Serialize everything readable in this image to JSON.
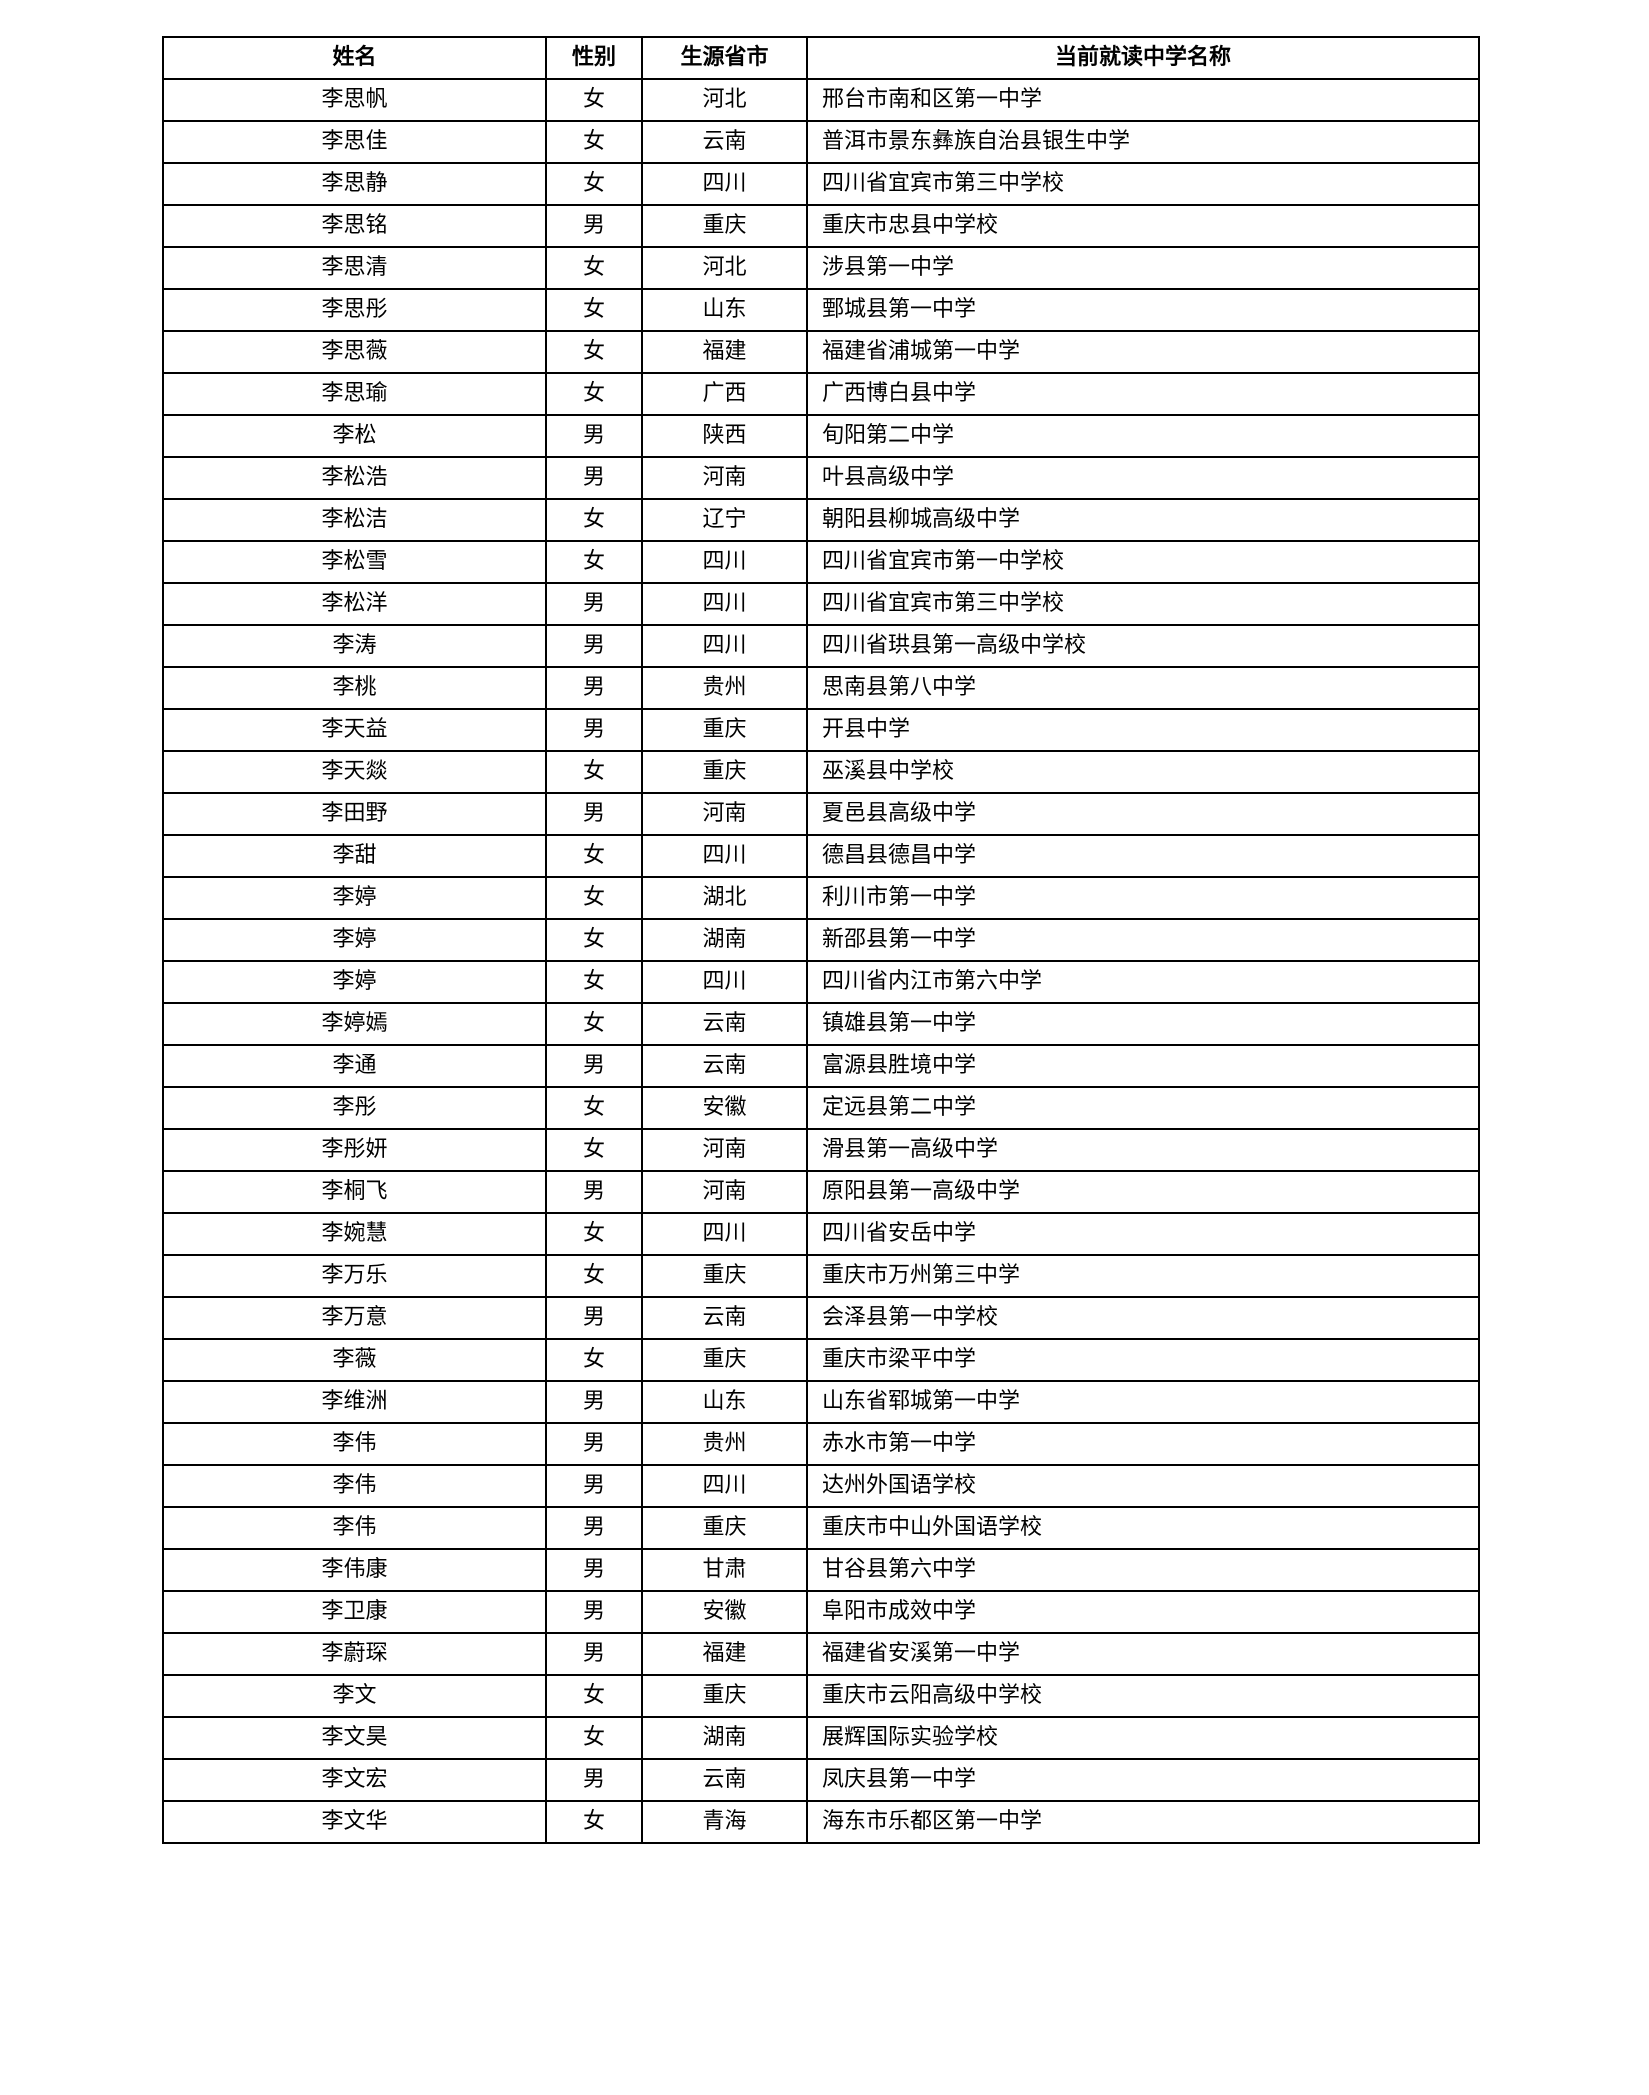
{
  "header": {
    "name": "姓名",
    "gender": "性别",
    "province": "生源省市",
    "school": "当前就读中学名称"
  },
  "rows": [
    [
      "李思帆",
      "女",
      "河北",
      "邢台市南和区第一中学"
    ],
    [
      "李思佳",
      "女",
      "云南",
      "普洱市景东彝族自治县银生中学"
    ],
    [
      "李思静",
      "女",
      "四川",
      "四川省宜宾市第三中学校"
    ],
    [
      "李思铭",
      "男",
      "重庆",
      "重庆市忠县中学校"
    ],
    [
      "李思清",
      "女",
      "河北",
      "涉县第一中学"
    ],
    [
      "李思彤",
      "女",
      "山东",
      "鄄城县第一中学"
    ],
    [
      "李思薇",
      "女",
      "福建",
      "福建省浦城第一中学"
    ],
    [
      "李思瑜",
      "女",
      "广西",
      "广西博白县中学"
    ],
    [
      "李松",
      "男",
      "陕西",
      "旬阳第二中学"
    ],
    [
      "李松浩",
      "男",
      "河南",
      "叶县高级中学"
    ],
    [
      "李松洁",
      "女",
      "辽宁",
      "朝阳县柳城高级中学"
    ],
    [
      "李松雪",
      "女",
      "四川",
      "四川省宜宾市第一中学校"
    ],
    [
      "李松洋",
      "男",
      "四川",
      "四川省宜宾市第三中学校"
    ],
    [
      "李涛",
      "男",
      "四川",
      "四川省珙县第一高级中学校"
    ],
    [
      "李桃",
      "男",
      "贵州",
      "思南县第八中学"
    ],
    [
      "李天益",
      "男",
      "重庆",
      "开县中学"
    ],
    [
      "李天燚",
      "女",
      "重庆",
      "巫溪县中学校"
    ],
    [
      "李田野",
      "男",
      "河南",
      "夏邑县高级中学"
    ],
    [
      "李甜",
      "女",
      "四川",
      "德昌县德昌中学"
    ],
    [
      "李婷",
      "女",
      "湖北",
      "利川市第一中学"
    ],
    [
      "李婷",
      "女",
      "湖南",
      "新邵县第一中学"
    ],
    [
      "李婷",
      "女",
      "四川",
      "四川省内江市第六中学"
    ],
    [
      "李婷嫣",
      "女",
      "云南",
      "镇雄县第一中学"
    ],
    [
      "李通",
      "男",
      "云南",
      "富源县胜境中学"
    ],
    [
      "李彤",
      "女",
      "安徽",
      "定远县第二中学"
    ],
    [
      "李彤妍",
      "女",
      "河南",
      "滑县第一高级中学"
    ],
    [
      "李桐飞",
      "男",
      "河南",
      "原阳县第一高级中学"
    ],
    [
      "李婉慧",
      "女",
      "四川",
      "四川省安岳中学"
    ],
    [
      "李万乐",
      "女",
      "重庆",
      "重庆市万州第三中学"
    ],
    [
      "李万意",
      "男",
      "云南",
      "会泽县第一中学校"
    ],
    [
      "李薇",
      "女",
      "重庆",
      "重庆市梁平中学"
    ],
    [
      "李维洲",
      "男",
      "山东",
      "山东省郓城第一中学"
    ],
    [
      "李伟",
      "男",
      "贵州",
      "赤水市第一中学"
    ],
    [
      "李伟",
      "男",
      "四川",
      "达州外国语学校"
    ],
    [
      "李伟",
      "男",
      "重庆",
      "重庆市中山外国语学校"
    ],
    [
      "李伟康",
      "男",
      "甘肃",
      "甘谷县第六中学"
    ],
    [
      "李卫康",
      "男",
      "安徽",
      "阜阳市成效中学"
    ],
    [
      "李蔚琛",
      "男",
      "福建",
      "福建省安溪第一中学"
    ],
    [
      "李文",
      "女",
      "重庆",
      "重庆市云阳高级中学校"
    ],
    [
      "李文昊",
      "女",
      "湖南",
      "展辉国际实验学校"
    ],
    [
      "李文宏",
      "男",
      "云南",
      "凤庆县第一中学"
    ],
    [
      "李文华",
      "女",
      "青海",
      "海东市乐都区第一中学"
    ]
  ]
}
